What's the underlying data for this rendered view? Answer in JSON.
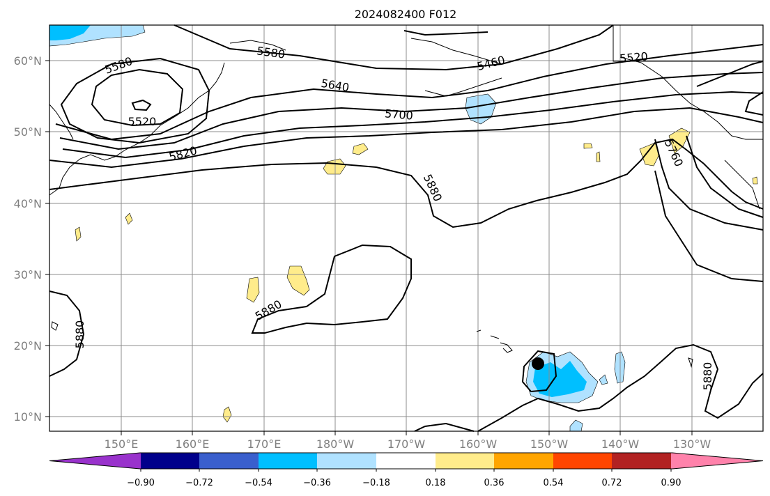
{
  "title": "2024082400 F012",
  "map": {
    "lat_labels": [
      "60°N",
      "50°N",
      "40°N",
      "30°N",
      "20°N",
      "10°N"
    ],
    "lon_labels": [
      "150°E",
      "160°E",
      "170°E",
      "180°W",
      "170°W",
      "160°W",
      "150°W",
      "140°W",
      "130°W"
    ],
    "contour_labels": [
      "5580",
      "5580",
      "5520",
      "5520",
      "5460",
      "5640",
      "5700",
      "5760",
      "5820",
      "5880",
      "5880",
      "5880",
      "5880"
    ],
    "contour_color": "#000000",
    "storm_marker": "black-dot"
  },
  "colorbar": {
    "ticks": [
      "−0.90",
      "−0.72",
      "−0.54",
      "−0.36",
      "−0.18",
      "0.18",
      "0.36",
      "0.54",
      "0.72",
      "0.90"
    ],
    "colors": [
      "#9932cc",
      "#00008b",
      "#3a5fcd",
      "#00bfff",
      "#b0e2ff",
      "#ffffff",
      "#ffec8b",
      "#ffa500",
      "#ff4500",
      "#b22222",
      "#ff82ab"
    ]
  }
}
